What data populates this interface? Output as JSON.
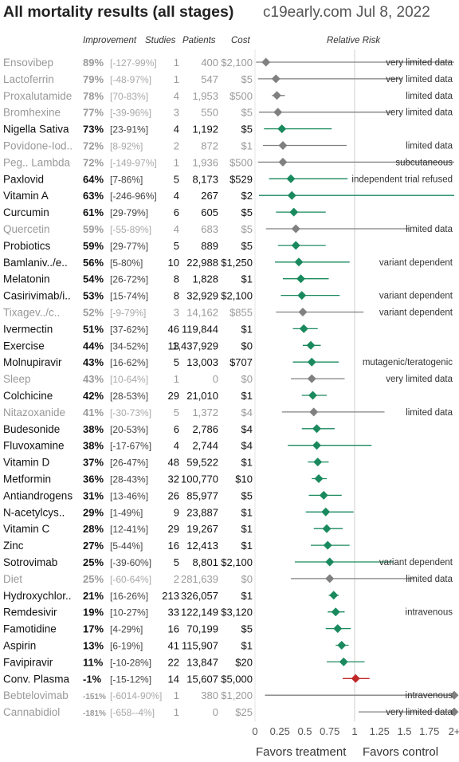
{
  "header": {
    "title": "All mortality results (all stages)",
    "source": "c19early.com Jul 8, 2022"
  },
  "columns": {
    "improvement": "Improvement",
    "studies": "Studies",
    "patients": "Patients",
    "cost": "Cost",
    "relative_risk": "Relative Risk"
  },
  "footer": {
    "left": "Favors treatment",
    "right": "Favors control"
  },
  "colors": {
    "significant": "#1a8a5e",
    "limited": "#808080",
    "harm": "#c0282a"
  },
  "chart_data": {
    "type": "forest",
    "xlim": [
      0,
      2
    ],
    "x_ticks": [
      "0",
      "0.25",
      "0.5",
      "0.75",
      "1",
      "1.25",
      "1.5",
      "1.75",
      "2+"
    ],
    "reference_line": 1,
    "rows": [
      {
        "name": "Ensovibep",
        "imp": "89%",
        "ci": "[-127-99%]",
        "studies": "1",
        "patients": "400",
        "cost": "$2,100",
        "rr": 0.11,
        "lo": 0.01,
        "hi": 2.27,
        "style": "gray",
        "note": "very limited data"
      },
      {
        "name": "Lactoferrin",
        "imp": "79%",
        "ci": "[-48-97%]",
        "studies": "1",
        "patients": "547",
        "cost": "$5",
        "rr": 0.21,
        "lo": 0.03,
        "hi": 1.48,
        "style": "gray",
        "note": "very limited data"
      },
      {
        "name": "Proxalutamide",
        "imp": "78%",
        "ci": "[70-83%]",
        "studies": "4",
        "patients": "1,953",
        "cost": "$500",
        "rr": 0.22,
        "lo": 0.17,
        "hi": 0.3,
        "style": "gray",
        "note": "limited data"
      },
      {
        "name": "Bromhexine",
        "imp": "77%",
        "ci": "[-39-96%]",
        "studies": "3",
        "patients": "550",
        "cost": "$5",
        "rr": 0.23,
        "lo": 0.04,
        "hi": 1.39,
        "style": "gray",
        "note": "very limited data"
      },
      {
        "name": "Nigella Sativa",
        "imp": "73%",
        "ci": "[23-91%]",
        "studies": "4",
        "patients": "1,192",
        "cost": "$5",
        "rr": 0.27,
        "lo": 0.09,
        "hi": 0.77,
        "style": "green",
        "note": ""
      },
      {
        "name": "Povidone-Iod..",
        "imp": "72%",
        "ci": "[8-92%]",
        "studies": "2",
        "patients": "872",
        "cost": "$1",
        "rr": 0.28,
        "lo": 0.08,
        "hi": 0.92,
        "style": "gray",
        "note": "limited data"
      },
      {
        "name": "Peg.. Lambda",
        "imp": "72%",
        "ci": "[-149-97%]",
        "studies": "1",
        "patients": "1,936",
        "cost": "$500",
        "rr": 0.28,
        "lo": 0.03,
        "hi": 2.49,
        "style": "gray",
        "note": "subcutaneous"
      },
      {
        "name": "Paxlovid",
        "imp": "64%",
        "ci": "[7-86%]",
        "studies": "5",
        "patients": "8,173",
        "cost": "$529",
        "rr": 0.36,
        "lo": 0.14,
        "hi": 0.93,
        "style": "green",
        "note": "independent trial refused"
      },
      {
        "name": "Vitamin A",
        "imp": "63%",
        "ci": "[-246-96%]",
        "studies": "4",
        "patients": "267",
        "cost": "$2",
        "rr": 0.37,
        "lo": 0.04,
        "hi": 3.46,
        "style": "green",
        "note": ""
      },
      {
        "name": "Curcumin",
        "imp": "61%",
        "ci": "[29-79%]",
        "studies": "6",
        "patients": "605",
        "cost": "$5",
        "rr": 0.39,
        "lo": 0.21,
        "hi": 0.71,
        "style": "green",
        "note": ""
      },
      {
        "name": "Quercetin",
        "imp": "59%",
        "ci": "[-55-89%]",
        "studies": "4",
        "patients": "683",
        "cost": "$5",
        "rr": 0.41,
        "lo": 0.11,
        "hi": 1.55,
        "style": "gray",
        "note": "limited data"
      },
      {
        "name": "Probiotics",
        "imp": "59%",
        "ci": "[29-77%]",
        "studies": "5",
        "patients": "889",
        "cost": "$5",
        "rr": 0.41,
        "lo": 0.23,
        "hi": 0.71,
        "style": "green",
        "note": ""
      },
      {
        "name": "Bamlaniv../e..",
        "imp": "56%",
        "ci": "[5-80%]",
        "studies": "10",
        "patients": "22,988",
        "cost": "$1,250",
        "rr": 0.44,
        "lo": 0.2,
        "hi": 0.95,
        "style": "green",
        "note": "variant dependent"
      },
      {
        "name": "Melatonin",
        "imp": "54%",
        "ci": "[26-72%]",
        "studies": "8",
        "patients": "1,828",
        "cost": "$1",
        "rr": 0.46,
        "lo": 0.28,
        "hi": 0.74,
        "style": "green",
        "note": ""
      },
      {
        "name": "Casirivimab/i..",
        "imp": "53%",
        "ci": "[15-74%]",
        "studies": "8",
        "patients": "32,929",
        "cost": "$2,100",
        "rr": 0.47,
        "lo": 0.26,
        "hi": 0.85,
        "style": "green",
        "note": "variant dependent"
      },
      {
        "name": "Tixagev../c..",
        "imp": "52%",
        "ci": "[-9-79%]",
        "studies": "3",
        "patients": "14,162",
        "cost": "$855",
        "rr": 0.48,
        "lo": 0.21,
        "hi": 1.09,
        "style": "gray",
        "note": "variant dependent"
      },
      {
        "name": "Ivermectin",
        "imp": "51%",
        "ci": "[37-62%]",
        "studies": "46",
        "patients": "119,844",
        "cost": "$1",
        "rr": 0.49,
        "lo": 0.38,
        "hi": 0.63,
        "style": "green",
        "note": ""
      },
      {
        "name": "Exercise",
        "imp": "44%",
        "ci": "[34-52%]",
        "studies": "13",
        "patients": "1,437,929",
        "cost": "$0",
        "rr": 0.56,
        "lo": 0.48,
        "hi": 0.66,
        "style": "green",
        "note": ""
      },
      {
        "name": "Molnupiravir",
        "imp": "43%",
        "ci": "[16-62%]",
        "studies": "5",
        "patients": "13,003",
        "cost": "$707",
        "rr": 0.57,
        "lo": 0.38,
        "hi": 0.84,
        "style": "green",
        "note": "mutagenic/teratogenic"
      },
      {
        "name": "Sleep",
        "imp": "43%",
        "ci": "[10-64%]",
        "studies": "1",
        "patients": "0",
        "cost": "$0",
        "rr": 0.57,
        "lo": 0.36,
        "hi": 0.9,
        "style": "gray",
        "note": "very limited data"
      },
      {
        "name": "Colchicine",
        "imp": "42%",
        "ci": "[28-53%]",
        "studies": "29",
        "patients": "21,010",
        "cost": "$1",
        "rr": 0.58,
        "lo": 0.47,
        "hi": 0.72,
        "style": "green",
        "note": ""
      },
      {
        "name": "Nitazoxanide",
        "imp": "41%",
        "ci": "[-30-73%]",
        "studies": "5",
        "patients": "1,372",
        "cost": "$4",
        "rr": 0.59,
        "lo": 0.27,
        "hi": 1.3,
        "style": "gray",
        "note": "limited data"
      },
      {
        "name": "Budesonide",
        "imp": "38%",
        "ci": "[20-53%]",
        "studies": "6",
        "patients": "2,786",
        "cost": "$4",
        "rr": 0.62,
        "lo": 0.47,
        "hi": 0.8,
        "style": "green",
        "note": ""
      },
      {
        "name": "Fluvoxamine",
        "imp": "38%",
        "ci": "[-17-67%]",
        "studies": "4",
        "patients": "2,744",
        "cost": "$4",
        "rr": 0.62,
        "lo": 0.33,
        "hi": 1.17,
        "style": "green",
        "note": ""
      },
      {
        "name": "Vitamin D",
        "imp": "37%",
        "ci": "[26-47%]",
        "studies": "48",
        "patients": "59,522",
        "cost": "$1",
        "rr": 0.63,
        "lo": 0.53,
        "hi": 0.74,
        "style": "green",
        "note": ""
      },
      {
        "name": "Metformin",
        "imp": "36%",
        "ci": "[28-43%]",
        "studies": "32",
        "patients": "100,770",
        "cost": "$10",
        "rr": 0.64,
        "lo": 0.57,
        "hi": 0.72,
        "style": "green",
        "note": ""
      },
      {
        "name": "Antiandrogens",
        "imp": "31%",
        "ci": "[13-46%]",
        "studies": "26",
        "patients": "85,977",
        "cost": "$5",
        "rr": 0.69,
        "lo": 0.54,
        "hi": 0.87,
        "style": "green",
        "note": ""
      },
      {
        "name": "N-acetylcys..",
        "imp": "29%",
        "ci": "[1-49%]",
        "studies": "9",
        "patients": "23,887",
        "cost": "$1",
        "rr": 0.71,
        "lo": 0.51,
        "hi": 0.99,
        "style": "green",
        "note": ""
      },
      {
        "name": "Vitamin C",
        "imp": "28%",
        "ci": "[12-41%]",
        "studies": "29",
        "patients": "19,267",
        "cost": "$1",
        "rr": 0.72,
        "lo": 0.59,
        "hi": 0.88,
        "style": "green",
        "note": ""
      },
      {
        "name": "Zinc",
        "imp": "27%",
        "ci": "[5-44%]",
        "studies": "16",
        "patients": "12,413",
        "cost": "$1",
        "rr": 0.73,
        "lo": 0.56,
        "hi": 0.95,
        "style": "green",
        "note": ""
      },
      {
        "name": "Sotrovimab",
        "imp": "25%",
        "ci": "[-39-60%]",
        "studies": "5",
        "patients": "8,801",
        "cost": "$2,100",
        "rr": 0.75,
        "lo": 0.4,
        "hi": 1.39,
        "style": "green",
        "note": "variant dependent"
      },
      {
        "name": "Diet",
        "imp": "25%",
        "ci": "[-60-64%]",
        "studies": "2",
        "patients": "281,639",
        "cost": "$0",
        "rr": 0.75,
        "lo": 0.36,
        "hi": 1.6,
        "style": "gray",
        "note": "limited data"
      },
      {
        "name": "Hydroxychlor..",
        "imp": "21%",
        "ci": "[16-26%]",
        "studies": "213",
        "patients": "326,057",
        "cost": "$1",
        "rr": 0.79,
        "lo": 0.74,
        "hi": 0.84,
        "style": "green",
        "note": ""
      },
      {
        "name": "Remdesivir",
        "imp": "19%",
        "ci": "[10-27%]",
        "studies": "33",
        "patients": "122,149",
        "cost": "$3,120",
        "rr": 0.81,
        "lo": 0.73,
        "hi": 0.9,
        "style": "green",
        "note": "intravenous"
      },
      {
        "name": "Famotidine",
        "imp": "17%",
        "ci": "[4-29%]",
        "studies": "16",
        "patients": "70,199",
        "cost": "$5",
        "rr": 0.83,
        "lo": 0.71,
        "hi": 0.96,
        "style": "green",
        "note": ""
      },
      {
        "name": "Aspirin",
        "imp": "13%",
        "ci": "[6-19%]",
        "studies": "41",
        "patients": "115,907",
        "cost": "$1",
        "rr": 0.87,
        "lo": 0.81,
        "hi": 0.94,
        "style": "green",
        "note": ""
      },
      {
        "name": "Favipiravir",
        "imp": "11%",
        "ci": "[-10-28%]",
        "studies": "22",
        "patients": "13,847",
        "cost": "$20",
        "rr": 0.89,
        "lo": 0.72,
        "hi": 1.1,
        "style": "green",
        "note": ""
      },
      {
        "name": "Conv. Plasma",
        "imp": "-1%",
        "ci": "[-15-12%]",
        "studies": "14",
        "patients": "15,607",
        "cost": "$5,000",
        "rr": 1.01,
        "lo": 0.88,
        "hi": 1.15,
        "style": "red",
        "note": ""
      },
      {
        "name": "Bebtelovimab",
        "imp": "-151%",
        "ci": "[-6014-90%]",
        "studies": "1",
        "patients": "380",
        "cost": "$1,200",
        "rr": 2.51,
        "lo": 0.1,
        "hi": 61.14,
        "style": "gray",
        "note": "intravenous"
      },
      {
        "name": "Cannabidiol",
        "imp": "-181%",
        "ci": "[-658--4%]",
        "studies": "1",
        "patients": "0",
        "cost": "$25",
        "rr": 2.81,
        "lo": 1.04,
        "hi": 7.58,
        "style": "gray",
        "note": "very limited data"
      }
    ]
  }
}
